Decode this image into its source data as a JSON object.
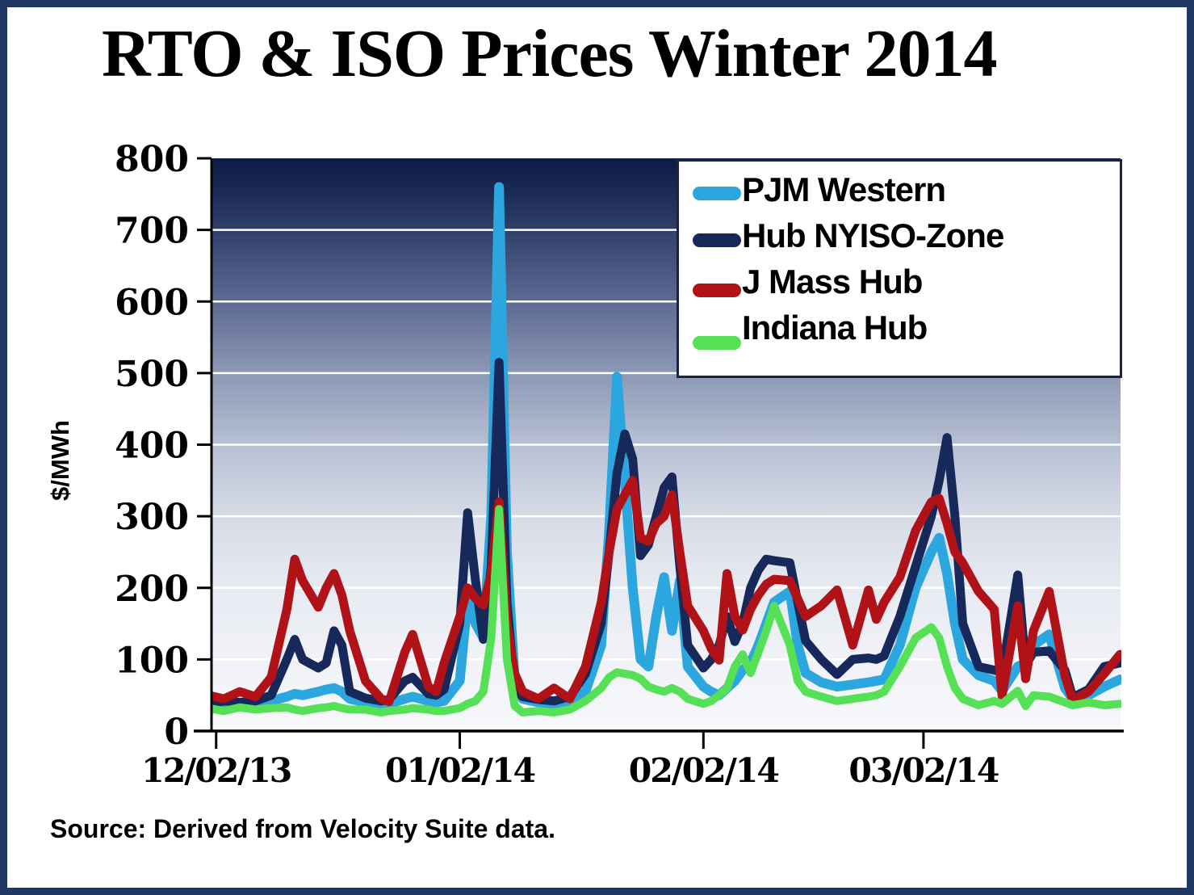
{
  "title": "RTO & ISO Prices Winter 2014",
  "y_axis_title": "$/MWh",
  "source_note": "Source: Derived from Velocity Suite data.",
  "legend": {
    "items": [
      {
        "label": "PJM Western",
        "color": "#2BA6DE"
      },
      {
        "label": "Hub NYISO-Zone",
        "color": "#17295A"
      },
      {
        "label": "J Mass Hub",
        "color": "#B01217"
      },
      {
        "label": "Indiana Hub",
        "color": "#55E055"
      }
    ]
  },
  "chart_data": {
    "type": "line",
    "title": "RTO & ISO Prices Winter 2014",
    "xlabel": "",
    "ylabel": "$/MWh",
    "ylim": [
      0,
      800
    ],
    "yticks": [
      0,
      100,
      200,
      300,
      400,
      500,
      600,
      700,
      800
    ],
    "grid": "horizontal-white-on-gradient",
    "legend_position": "top-right",
    "x_unit": "days since 12/01/13",
    "xticks": [
      {
        "label": "12/02/13",
        "day": 1
      },
      {
        "label": "01/02/14",
        "day": 32
      },
      {
        "label": "02/02/14",
        "day": 63
      },
      {
        "label": "03/02/14",
        "day": 91
      }
    ],
    "x": [
      0,
      2,
      4,
      6,
      8,
      10,
      11,
      12,
      14,
      15,
      16,
      17,
      18,
      20,
      22,
      23,
      25,
      26,
      28,
      29,
      30,
      32,
      33,
      34,
      35,
      36,
      37,
      38,
      39,
      40,
      42,
      44,
      46,
      48,
      50,
      51,
      52,
      53,
      54,
      55,
      56,
      57,
      58,
      59,
      60,
      61,
      63,
      64,
      65,
      66,
      67,
      68,
      69,
      70,
      71,
      72,
      74,
      75,
      76,
      78,
      80,
      82,
      84,
      85,
      86,
      88,
      90,
      92,
      93,
      94,
      95,
      96,
      98,
      100,
      101,
      103,
      104,
      105,
      107,
      109,
      110,
      112,
      114,
      116
    ],
    "series": [
      {
        "name": "PJM Western Hub",
        "legend_text": "PJM Western Hub",
        "color": "#2BA6DE",
        "stroke_width": 12,
        "values": [
          30,
          35,
          38,
          40,
          42,
          48,
          52,
          50,
          55,
          58,
          60,
          55,
          45,
          40,
          36,
          38,
          45,
          48,
          42,
          40,
          42,
          70,
          185,
          150,
          130,
          300,
          760,
          250,
          70,
          45,
          40,
          38,
          42,
          55,
          120,
          280,
          495,
          350,
          200,
          100,
          90,
          160,
          215,
          140,
          210,
          90,
          62,
          55,
          50,
          60,
          70,
          85,
          95,
          120,
          150,
          180,
          195,
          120,
          81,
          68,
          62,
          65,
          68,
          70,
          72,
          120,
          200,
          250,
          270,
          220,
          150,
          100,
          78,
          70,
          56,
          90,
          95,
          120,
          135,
          60,
          45,
          50,
          62,
          72
        ]
      },
      {
        "name": "NYISO-Zone J",
        "legend_text": "NYISO-Zone J",
        "color": "#17295A",
        "stroke_width": 11,
        "values": [
          38,
          42,
          40,
          42,
          50,
          100,
          128,
          100,
          88,
          95,
          140,
          120,
          55,
          46,
          42,
          44,
          70,
          75,
          52,
          50,
          58,
          150,
          305,
          210,
          128,
          230,
          515,
          180,
          60,
          48,
          44,
          42,
          48,
          80,
          150,
          250,
          360,
          415,
          380,
          245,
          260,
          300,
          340,
          355,
          230,
          120,
          88,
          100,
          120,
          160,
          125,
          150,
          200,
          225,
          240,
          238,
          235,
          180,
          126,
          100,
          79,
          100,
          102,
          100,
          105,
          160,
          230,
          300,
          350,
          410,
          300,
          150,
          90,
          85,
          82,
          218,
          92,
          110,
          112,
          85,
          47,
          58,
          90,
          95
        ]
      },
      {
        "name": "Mass Hub",
        "legend_text": "Mass Hub",
        "color": "#B01217",
        "stroke_width": 11,
        "values": [
          50,
          45,
          55,
          48,
          75,
          170,
          240,
          210,
          173,
          200,
          220,
          190,
          140,
          70,
          45,
          41,
          110,
          135,
          62,
          55,
          95,
          160,
          200,
          185,
          176,
          220,
          320,
          150,
          80,
          55,
          45,
          60,
          45,
          90,
          180,
          250,
          310,
          330,
          350,
          270,
          265,
          290,
          300,
          330,
          250,
          175,
          140,
          115,
          99,
          220,
          160,
          141,
          170,
          190,
          205,
          212,
          210,
          185,
          160,
          175,
          197,
          120,
          197,
          156,
          180,
          215,
          280,
          320,
          325,
          290,
          250,
          235,
          195,
          170,
          49,
          175,
          73,
          140,
          195,
          77,
          43,
          55,
          80,
          107
        ]
      },
      {
        "name": "Indiana Hub",
        "legend_text": "Indiana Hub",
        "color": "#55E055",
        "stroke_width": 10,
        "values": [
          32,
          28,
          33,
          30,
          32,
          33,
          30,
          28,
          32,
          33,
          35,
          32,
          30,
          30,
          26,
          28,
          30,
          32,
          30,
          28,
          28,
          32,
          38,
          42,
          55,
          130,
          310,
          100,
          35,
          26,
          28,
          26,
          30,
          42,
          60,
          75,
          82,
          80,
          78,
          73,
          62,
          58,
          55,
          60,
          55,
          45,
          38,
          42,
          50,
          60,
          90,
          107,
          81,
          110,
          140,
          175,
          120,
          70,
          55,
          48,
          42,
          45,
          48,
          50,
          55,
          90,
          130,
          145,
          130,
          90,
          60,
          45,
          36,
          42,
          38,
          56,
          35,
          50,
          48,
          40,
          36,
          40,
          36,
          38
        ]
      }
    ],
    "plot_background_gradient": [
      {
        "offset": 0.0,
        "color": "#0C1B43"
      },
      {
        "offset": 0.06,
        "color": "#1C2B55"
      },
      {
        "offset": 0.125,
        "color": "#31406B"
      },
      {
        "offset": 0.25,
        "color": "#5D6A92"
      },
      {
        "offset": 0.375,
        "color": "#8C98B4"
      },
      {
        "offset": 0.5,
        "color": "#B7C0D3"
      },
      {
        "offset": 0.625,
        "color": "#D6DBE7"
      },
      {
        "offset": 0.75,
        "color": "#E7EAF1"
      },
      {
        "offset": 0.875,
        "color": "#F0F2F7"
      },
      {
        "offset": 1.0,
        "color": "#F6F8FB"
      }
    ],
    "gridline_color": "#FFFFFF",
    "axis_color": "#000000"
  }
}
